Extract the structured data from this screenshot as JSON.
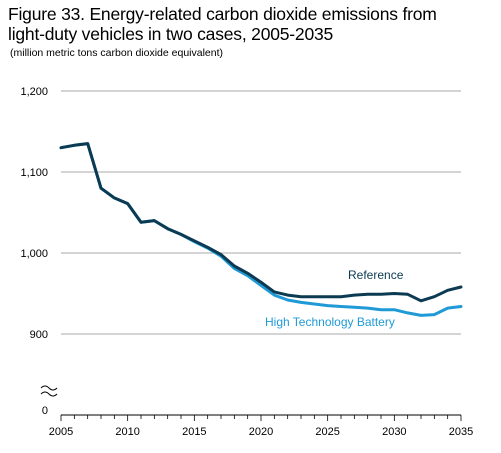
{
  "title_line1": "Figure 33. Energy-related carbon dioxide emissions from",
  "title_line2": "light-duty vehicles in two cases, 2005-2035",
  "subtitle": "(million metric tons carbon dioxide equivalent)",
  "chart_data": {
    "type": "line",
    "title": "Figure 33. Energy-related carbon dioxide emissions from light-duty vehicles in two cases, 2005-2035",
    "subtitle": "(million metric tons carbon dioxide equivalent)",
    "xlabel": "",
    "ylabel": "million metric tons carbon dioxide equivalent",
    "x": [
      2005,
      2006,
      2007,
      2008,
      2009,
      2010,
      2011,
      2012,
      2013,
      2014,
      2015,
      2016,
      2017,
      2018,
      2019,
      2020,
      2021,
      2022,
      2023,
      2024,
      2025,
      2026,
      2027,
      2028,
      2029,
      2030,
      2031,
      2032,
      2033,
      2034,
      2035
    ],
    "xlim": [
      2005,
      2035
    ],
    "xticks": [
      2005,
      2010,
      2015,
      2020,
      2025,
      2030,
      2035
    ],
    "xtick_labels": [
      "2005",
      "2010",
      "2015",
      "2020",
      "2025",
      "2030",
      "2035"
    ],
    "ylim_broken_axis": [
      800,
      1200
    ],
    "yticks": [
      900,
      1000,
      1100,
      1200
    ],
    "ytick_labels": [
      "900",
      "1,000",
      "1,100",
      "1,200"
    ],
    "axis_break_label": "0",
    "grid": "horizontal",
    "series": [
      {
        "name": "Reference",
        "color": "#0b3a52",
        "values": [
          1130,
          1133,
          1135,
          1080,
          1068,
          1061,
          1038,
          1040,
          1030,
          1023,
          1015,
          1007,
          998,
          984,
          975,
          964,
          952,
          948,
          946,
          946,
          946,
          946,
          948,
          949,
          949,
          950,
          949,
          941,
          946,
          954,
          958
        ]
      },
      {
        "name": "High Technology Battery",
        "color": "#1f9ad6",
        "values": [
          1130,
          1133,
          1135,
          1080,
          1068,
          1061,
          1038,
          1040,
          1030,
          1023,
          1014,
          1006,
          996,
          981,
          972,
          960,
          948,
          942,
          939,
          937,
          935,
          934,
          933,
          932,
          930,
          930,
          926,
          923,
          924,
          932,
          934
        ]
      }
    ]
  }
}
